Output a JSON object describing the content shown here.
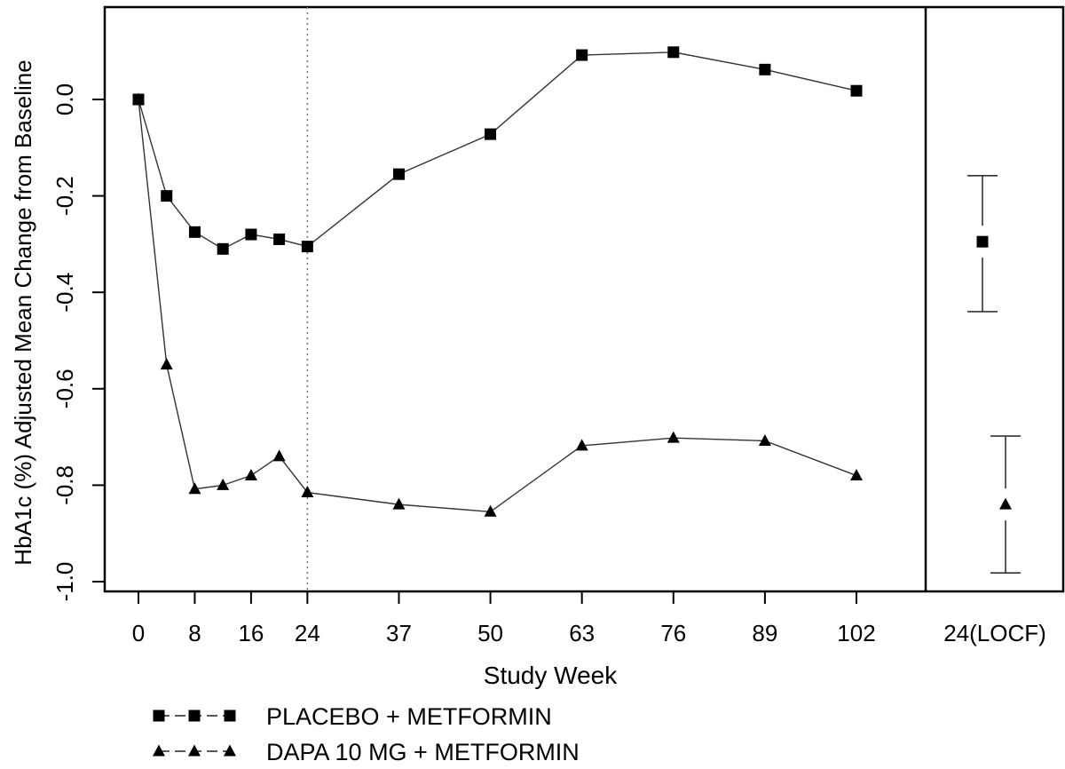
{
  "chart_data": {
    "type": "line",
    "xlabel": "Study Week",
    "ylabel": "HbA1c (%) Adjusted Mean Change from Baseline",
    "ylim": [
      -1.0,
      0.2
    ],
    "yticks": [
      "0.0",
      "-0.2",
      "-0.4",
      "-0.6",
      "-0.8",
      "-1.0"
    ],
    "ytick_values": [
      0.0,
      -0.2,
      -0.4,
      -0.6,
      -0.8,
      -1.0
    ],
    "xticks": [
      "0",
      "8",
      "16",
      "24",
      "37",
      "50",
      "63",
      "76",
      "89",
      "102"
    ],
    "xtick_values": [
      0,
      8,
      16,
      24,
      37,
      50,
      63,
      76,
      89,
      102
    ],
    "reference_line_week": 24,
    "locf_label": "24(LOCF)",
    "series": [
      {
        "name": "PLACEBO + METFORMIN",
        "marker": "square",
        "x": [
          0,
          4,
          8,
          12,
          16,
          20,
          24,
          37,
          50,
          63,
          76,
          89,
          102
        ],
        "values": [
          0.0,
          -0.2,
          -0.275,
          -0.31,
          -0.28,
          -0.29,
          -0.305,
          -0.155,
          -0.072,
          0.092,
          0.098,
          0.062,
          0.018
        ],
        "locf": {
          "mean": -0.295,
          "lower": -0.44,
          "upper": -0.158
        }
      },
      {
        "name": "DAPA 10 MG + METFORMIN",
        "marker": "triangle",
        "x": [
          0,
          4,
          8,
          12,
          16,
          20,
          24,
          37,
          50,
          63,
          76,
          89,
          102
        ],
        "values": [
          0.0,
          -0.55,
          -0.808,
          -0.8,
          -0.78,
          -0.74,
          -0.815,
          -0.84,
          -0.855,
          -0.718,
          -0.702,
          -0.708,
          -0.78
        ],
        "locf": {
          "mean": -0.84,
          "lower": -0.982,
          "upper": -0.698
        }
      }
    ]
  }
}
